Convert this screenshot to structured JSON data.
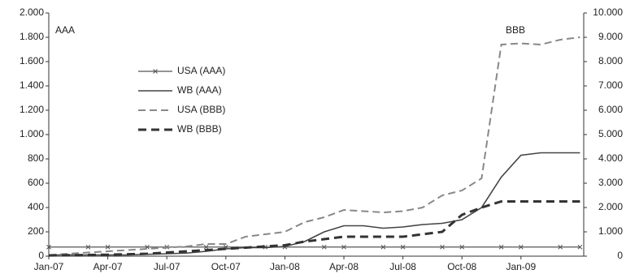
{
  "chart_data": {
    "type": "line",
    "annotations": [
      "AAA",
      "BBB"
    ],
    "categories": [
      "Jan-07",
      null,
      null,
      "Apr-07",
      null,
      null,
      "Jul-07",
      null,
      null,
      "Oct-07",
      null,
      null,
      "Jan-08",
      null,
      null,
      "Apr-08",
      null,
      null,
      "Jul-08",
      null,
      null,
      "Oct-08",
      null,
      null,
      "Jan-09",
      null,
      null,
      null
    ],
    "ylim": [
      0,
      2000
    ],
    "yticks": [
      0,
      200,
      400,
      600,
      800,
      {
        "value": 1000,
        "label": "1.000"
      },
      {
        "value": 1200,
        "label": "1.200"
      },
      {
        "value": 1400,
        "label": "1.400"
      },
      {
        "value": 1600,
        "label": "1.600"
      },
      {
        "value": 1800,
        "label": "1.800"
      },
      {
        "value": 2000,
        "label": "2.000"
      }
    ],
    "y2lim": [
      0,
      10000
    ],
    "y2ticks": [
      0,
      {
        "value": 1000,
        "label": "1.000"
      },
      {
        "value": 2000,
        "label": "2.000"
      },
      {
        "value": 3000,
        "label": "3.000"
      },
      {
        "value": 4000,
        "label": "4.000"
      },
      {
        "value": 5000,
        "label": "5.000"
      },
      {
        "value": 6000,
        "label": "6.000"
      },
      {
        "value": 7000,
        "label": "7.000"
      },
      {
        "value": 8000,
        "label": "8.000"
      },
      {
        "value": 9000,
        "label": "9.000"
      },
      {
        "value": 10000,
        "label": "10.000"
      }
    ],
    "series": [
      {
        "name": "USA (AAA)",
        "color": "#555555",
        "style": "marker",
        "values": [
          75,
          75,
          75,
          75,
          75,
          75,
          75,
          75,
          75,
          75,
          75,
          75,
          75,
          75,
          75,
          75,
          75,
          75,
          75,
          75,
          75,
          75,
          75,
          75,
          75,
          75,
          75,
          75
        ]
      },
      {
        "name": "WB (AAA)",
        "color": "#444444",
        "style": "solid",
        "values": [
          10,
          10,
          10,
          10,
          10,
          15,
          20,
          25,
          40,
          60,
          70,
          70,
          80,
          120,
          200,
          250,
          250,
          230,
          240,
          260,
          270,
          300,
          400,
          650,
          830,
          850,
          850,
          850
        ]
      },
      {
        "name": "USA (BBB)",
        "color": "#888888",
        "style": "dashed",
        "axis": "y2",
        "values": [
          50,
          100,
          150,
          200,
          250,
          300,
          350,
          400,
          500,
          500,
          800,
          900,
          1000,
          1400,
          1600,
          1900,
          1850,
          1800,
          1850,
          2000,
          2500,
          2700,
          3200,
          8700,
          8750,
          8700,
          8900,
          9000
        ]
      },
      {
        "name": "WB (BBB)",
        "color": "#333333",
        "style": "thickdashed",
        "axis": "y2",
        "values": [
          30,
          40,
          50,
          60,
          80,
          100,
          150,
          200,
          250,
          300,
          350,
          400,
          450,
          600,
          700,
          800,
          800,
          800,
          800,
          900,
          1000,
          1700,
          2000,
          2250,
          2250,
          2250,
          2250,
          2250
        ]
      }
    ]
  }
}
